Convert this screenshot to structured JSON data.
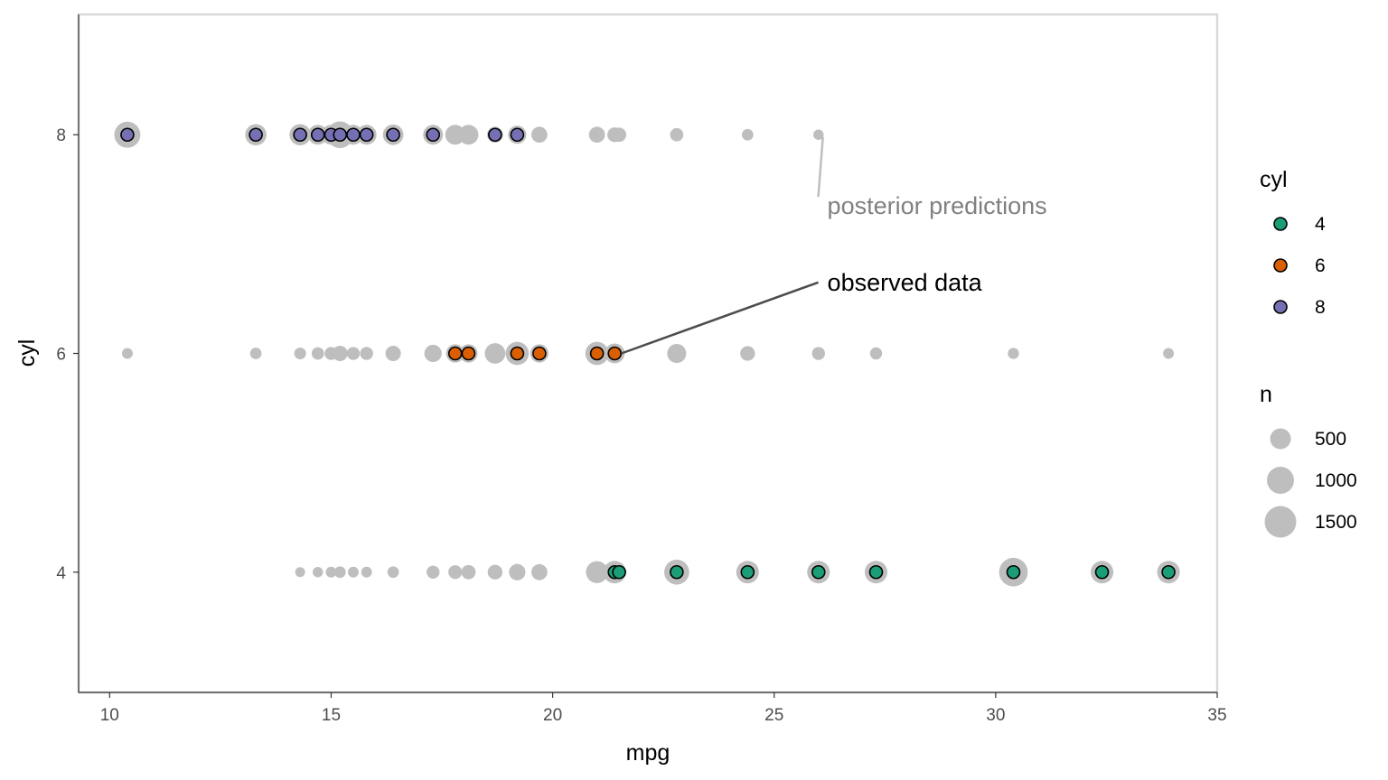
{
  "chart_data": {
    "type": "scatter",
    "xlabel": "mpg",
    "ylabel": "cyl",
    "xlim": [
      9.3,
      35.0
    ],
    "ylim": [
      2.9,
      9.1
    ],
    "x_ticks": [
      10,
      15,
      20,
      25,
      30,
      35
    ],
    "y_ticks": [
      4,
      6,
      8
    ],
    "grid": false,
    "legend_position": "right",
    "colors": {
      "4": "#1b9e77",
      "6": "#d95f02",
      "8": "#7570b3",
      "posterior": "#bebebe",
      "frame": "#d9d9d9"
    },
    "posterior_predictions": [
      {
        "mpg": 10.4,
        "cyl": 8,
        "n": 1000
      },
      {
        "mpg": 13.3,
        "cyl": 8,
        "n": 600
      },
      {
        "mpg": 14.3,
        "cyl": 8,
        "n": 600
      },
      {
        "mpg": 14.7,
        "cyl": 8,
        "n": 500
      },
      {
        "mpg": 15.0,
        "cyl": 8,
        "n": 500
      },
      {
        "mpg": 15.2,
        "cyl": 8,
        "n": 1050
      },
      {
        "mpg": 15.5,
        "cyl": 8,
        "n": 500
      },
      {
        "mpg": 15.8,
        "cyl": 8,
        "n": 500
      },
      {
        "mpg": 16.4,
        "cyl": 8,
        "n": 550
      },
      {
        "mpg": 17.3,
        "cyl": 8,
        "n": 500
      },
      {
        "mpg": 17.8,
        "cyl": 8,
        "n": 500
      },
      {
        "mpg": 18.1,
        "cyl": 8,
        "n": 500
      },
      {
        "mpg": 18.7,
        "cyl": 8,
        "n": 280
      },
      {
        "mpg": 19.2,
        "cyl": 8,
        "n": 400
      },
      {
        "mpg": 19.7,
        "cyl": 8,
        "n": 280
      },
      {
        "mpg": 21.0,
        "cyl": 8,
        "n": 280
      },
      {
        "mpg": 21.4,
        "cyl": 8,
        "n": 220
      },
      {
        "mpg": 21.5,
        "cyl": 8,
        "n": 200
      },
      {
        "mpg": 22.8,
        "cyl": 8,
        "n": 160
      },
      {
        "mpg": 24.4,
        "cyl": 8,
        "n": 100
      },
      {
        "mpg": 26.0,
        "cyl": 8,
        "n": 70
      },
      {
        "mpg": 10.4,
        "cyl": 6,
        "n": 80
      },
      {
        "mpg": 13.3,
        "cyl": 6,
        "n": 100
      },
      {
        "mpg": 14.3,
        "cyl": 6,
        "n": 110
      },
      {
        "mpg": 14.7,
        "cyl": 6,
        "n": 130
      },
      {
        "mpg": 15.0,
        "cyl": 6,
        "n": 150
      },
      {
        "mpg": 15.2,
        "cyl": 6,
        "n": 250
      },
      {
        "mpg": 15.5,
        "cyl": 6,
        "n": 150
      },
      {
        "mpg": 15.8,
        "cyl": 6,
        "n": 150
      },
      {
        "mpg": 16.4,
        "cyl": 6,
        "n": 250
      },
      {
        "mpg": 17.3,
        "cyl": 6,
        "n": 350
      },
      {
        "mpg": 17.8,
        "cyl": 6,
        "n": 400
      },
      {
        "mpg": 18.1,
        "cyl": 6,
        "n": 400
      },
      {
        "mpg": 18.7,
        "cyl": 6,
        "n": 550
      },
      {
        "mpg": 19.2,
        "cyl": 6,
        "n": 750
      },
      {
        "mpg": 19.7,
        "cyl": 6,
        "n": 400
      },
      {
        "mpg": 21.0,
        "cyl": 6,
        "n": 750
      },
      {
        "mpg": 21.4,
        "cyl": 6,
        "n": 500
      },
      {
        "mpg": 22.8,
        "cyl": 6,
        "n": 450
      },
      {
        "mpg": 24.4,
        "cyl": 6,
        "n": 220
      },
      {
        "mpg": 26.0,
        "cyl": 6,
        "n": 150
      },
      {
        "mpg": 27.3,
        "cyl": 6,
        "n": 120
      },
      {
        "mpg": 30.4,
        "cyl": 6,
        "n": 90
      },
      {
        "mpg": 33.9,
        "cyl": 6,
        "n": 80
      },
      {
        "mpg": 14.3,
        "cyl": 4,
        "n": 60
      },
      {
        "mpg": 14.7,
        "cyl": 4,
        "n": 70
      },
      {
        "mpg": 15.0,
        "cyl": 4,
        "n": 80
      },
      {
        "mpg": 15.2,
        "cyl": 4,
        "n": 100
      },
      {
        "mpg": 15.5,
        "cyl": 4,
        "n": 80
      },
      {
        "mpg": 15.8,
        "cyl": 4,
        "n": 80
      },
      {
        "mpg": 16.4,
        "cyl": 4,
        "n": 100
      },
      {
        "mpg": 17.3,
        "cyl": 4,
        "n": 150
      },
      {
        "mpg": 17.8,
        "cyl": 4,
        "n": 180
      },
      {
        "mpg": 18.1,
        "cyl": 4,
        "n": 200
      },
      {
        "mpg": 18.7,
        "cyl": 4,
        "n": 220
      },
      {
        "mpg": 19.2,
        "cyl": 4,
        "n": 300
      },
      {
        "mpg": 19.7,
        "cyl": 4,
        "n": 280
      },
      {
        "mpg": 21.0,
        "cyl": 4,
        "n": 650
      },
      {
        "mpg": 21.4,
        "cyl": 4,
        "n": 700
      },
      {
        "mpg": 22.8,
        "cyl": 4,
        "n": 900
      },
      {
        "mpg": 24.4,
        "cyl": 4,
        "n": 700
      },
      {
        "mpg": 26.0,
        "cyl": 4,
        "n": 700
      },
      {
        "mpg": 27.3,
        "cyl": 4,
        "n": 700
      },
      {
        "mpg": 30.4,
        "cyl": 4,
        "n": 1250
      },
      {
        "mpg": 32.4,
        "cyl": 4,
        "n": 700
      },
      {
        "mpg": 33.9,
        "cyl": 4,
        "n": 700
      }
    ],
    "observed_data": [
      {
        "mpg": 10.4,
        "cyl": 8
      },
      {
        "mpg": 13.3,
        "cyl": 8
      },
      {
        "mpg": 14.3,
        "cyl": 8
      },
      {
        "mpg": 14.7,
        "cyl": 8
      },
      {
        "mpg": 15.0,
        "cyl": 8
      },
      {
        "mpg": 15.2,
        "cyl": 8
      },
      {
        "mpg": 15.5,
        "cyl": 8
      },
      {
        "mpg": 15.8,
        "cyl": 8
      },
      {
        "mpg": 16.4,
        "cyl": 8
      },
      {
        "mpg": 17.3,
        "cyl": 8
      },
      {
        "mpg": 18.7,
        "cyl": 8
      },
      {
        "mpg": 19.2,
        "cyl": 8
      },
      {
        "mpg": 17.8,
        "cyl": 6
      },
      {
        "mpg": 18.1,
        "cyl": 6
      },
      {
        "mpg": 19.2,
        "cyl": 6
      },
      {
        "mpg": 19.7,
        "cyl": 6
      },
      {
        "mpg": 21.0,
        "cyl": 6
      },
      {
        "mpg": 21.4,
        "cyl": 6
      },
      {
        "mpg": 21.4,
        "cyl": 4
      },
      {
        "mpg": 21.5,
        "cyl": 4
      },
      {
        "mpg": 22.8,
        "cyl": 4
      },
      {
        "mpg": 24.4,
        "cyl": 4
      },
      {
        "mpg": 26.0,
        "cyl": 4
      },
      {
        "mpg": 27.3,
        "cyl": 4
      },
      {
        "mpg": 30.4,
        "cyl": 4
      },
      {
        "mpg": 32.4,
        "cyl": 4
      },
      {
        "mpg": 33.9,
        "cyl": 4
      }
    ],
    "annotations": [
      {
        "text": "posterior predictions",
        "color": "#808080",
        "point": {
          "mpg": 26.1,
          "cyl": 7.98
        },
        "label_at": {
          "mpg": 26.2,
          "cyl": 7.35
        }
      },
      {
        "text": "observed data",
        "color": "#000000",
        "point": {
          "mpg": 21.55,
          "cyl": 6.0
        },
        "label_at": {
          "mpg": 26.2,
          "cyl": 6.65
        }
      }
    ],
    "legend": {
      "cyl": {
        "title": "cyl",
        "entries": [
          "4",
          "6",
          "8"
        ]
      },
      "n": {
        "title": "n",
        "entries": [
          500,
          1000,
          1500
        ]
      }
    }
  }
}
